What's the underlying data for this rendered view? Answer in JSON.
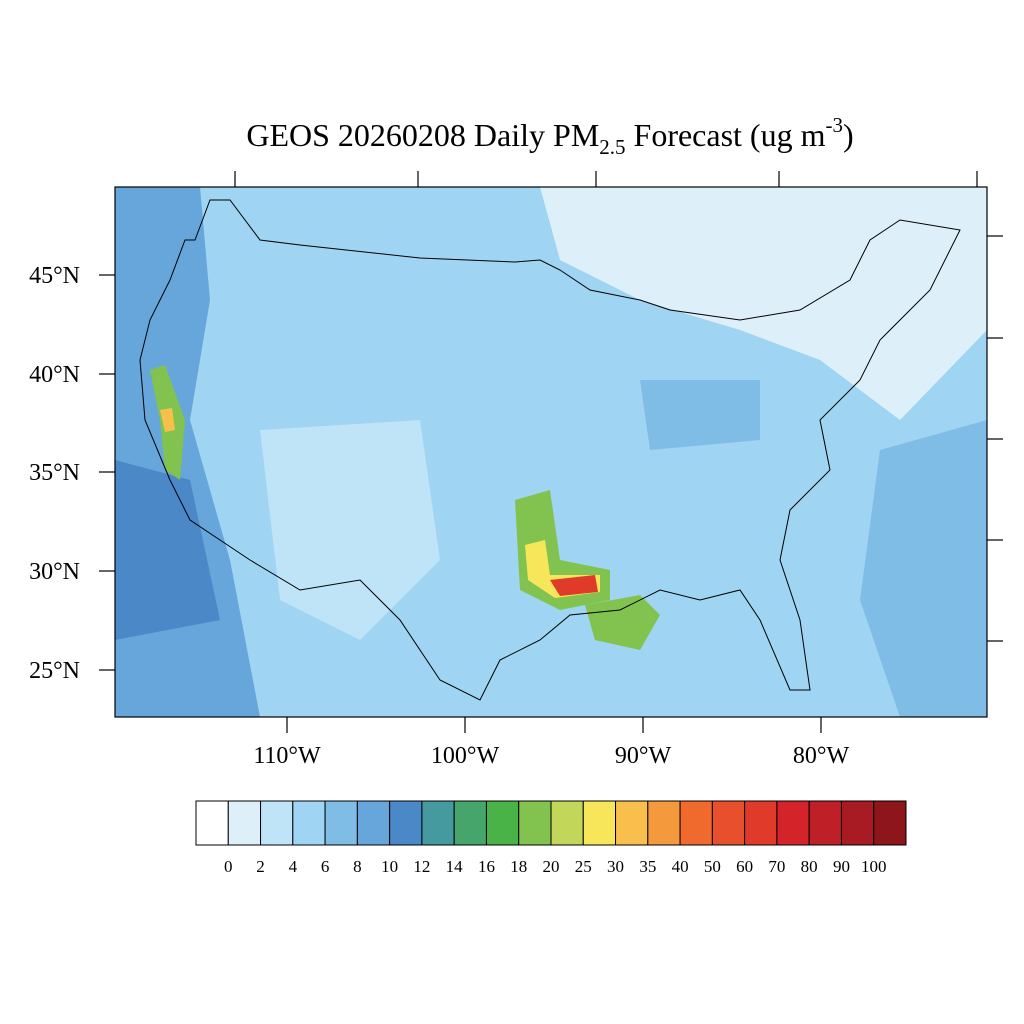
{
  "title": {
    "main": "GEOS 20260208 Daily PM",
    "subscript": "2.5",
    "rest": " Forecast (ug m",
    "superscript": "-3",
    "close": ")"
  },
  "map": {
    "lat_labels": [
      "45°N",
      "40°N",
      "35°N",
      "30°N",
      "25°N"
    ],
    "lon_labels": [
      "110°W",
      "100°W",
      "90°W",
      "80°W"
    ]
  },
  "colorbar": {
    "levels": [
      0,
      2,
      4,
      6,
      8,
      10,
      12,
      14,
      16,
      18,
      20,
      25,
      30,
      35,
      40,
      50,
      60,
      70,
      80,
      90,
      100
    ],
    "colors": [
      "#ffffff",
      "#ddf0fa",
      "#bfe3f7",
      "#9fd4f2",
      "#80bde6",
      "#66a6da",
      "#4a88c8",
      "#449a9e",
      "#46a56b",
      "#4ab348",
      "#82c350",
      "#c2d65a",
      "#f7e65a",
      "#f8bf4c",
      "#f59a3c",
      "#f06a2e",
      "#e84f2c",
      "#e03a2a",
      "#d42429",
      "#bf1f26",
      "#a81b22",
      "#8e1519"
    ]
  }
}
